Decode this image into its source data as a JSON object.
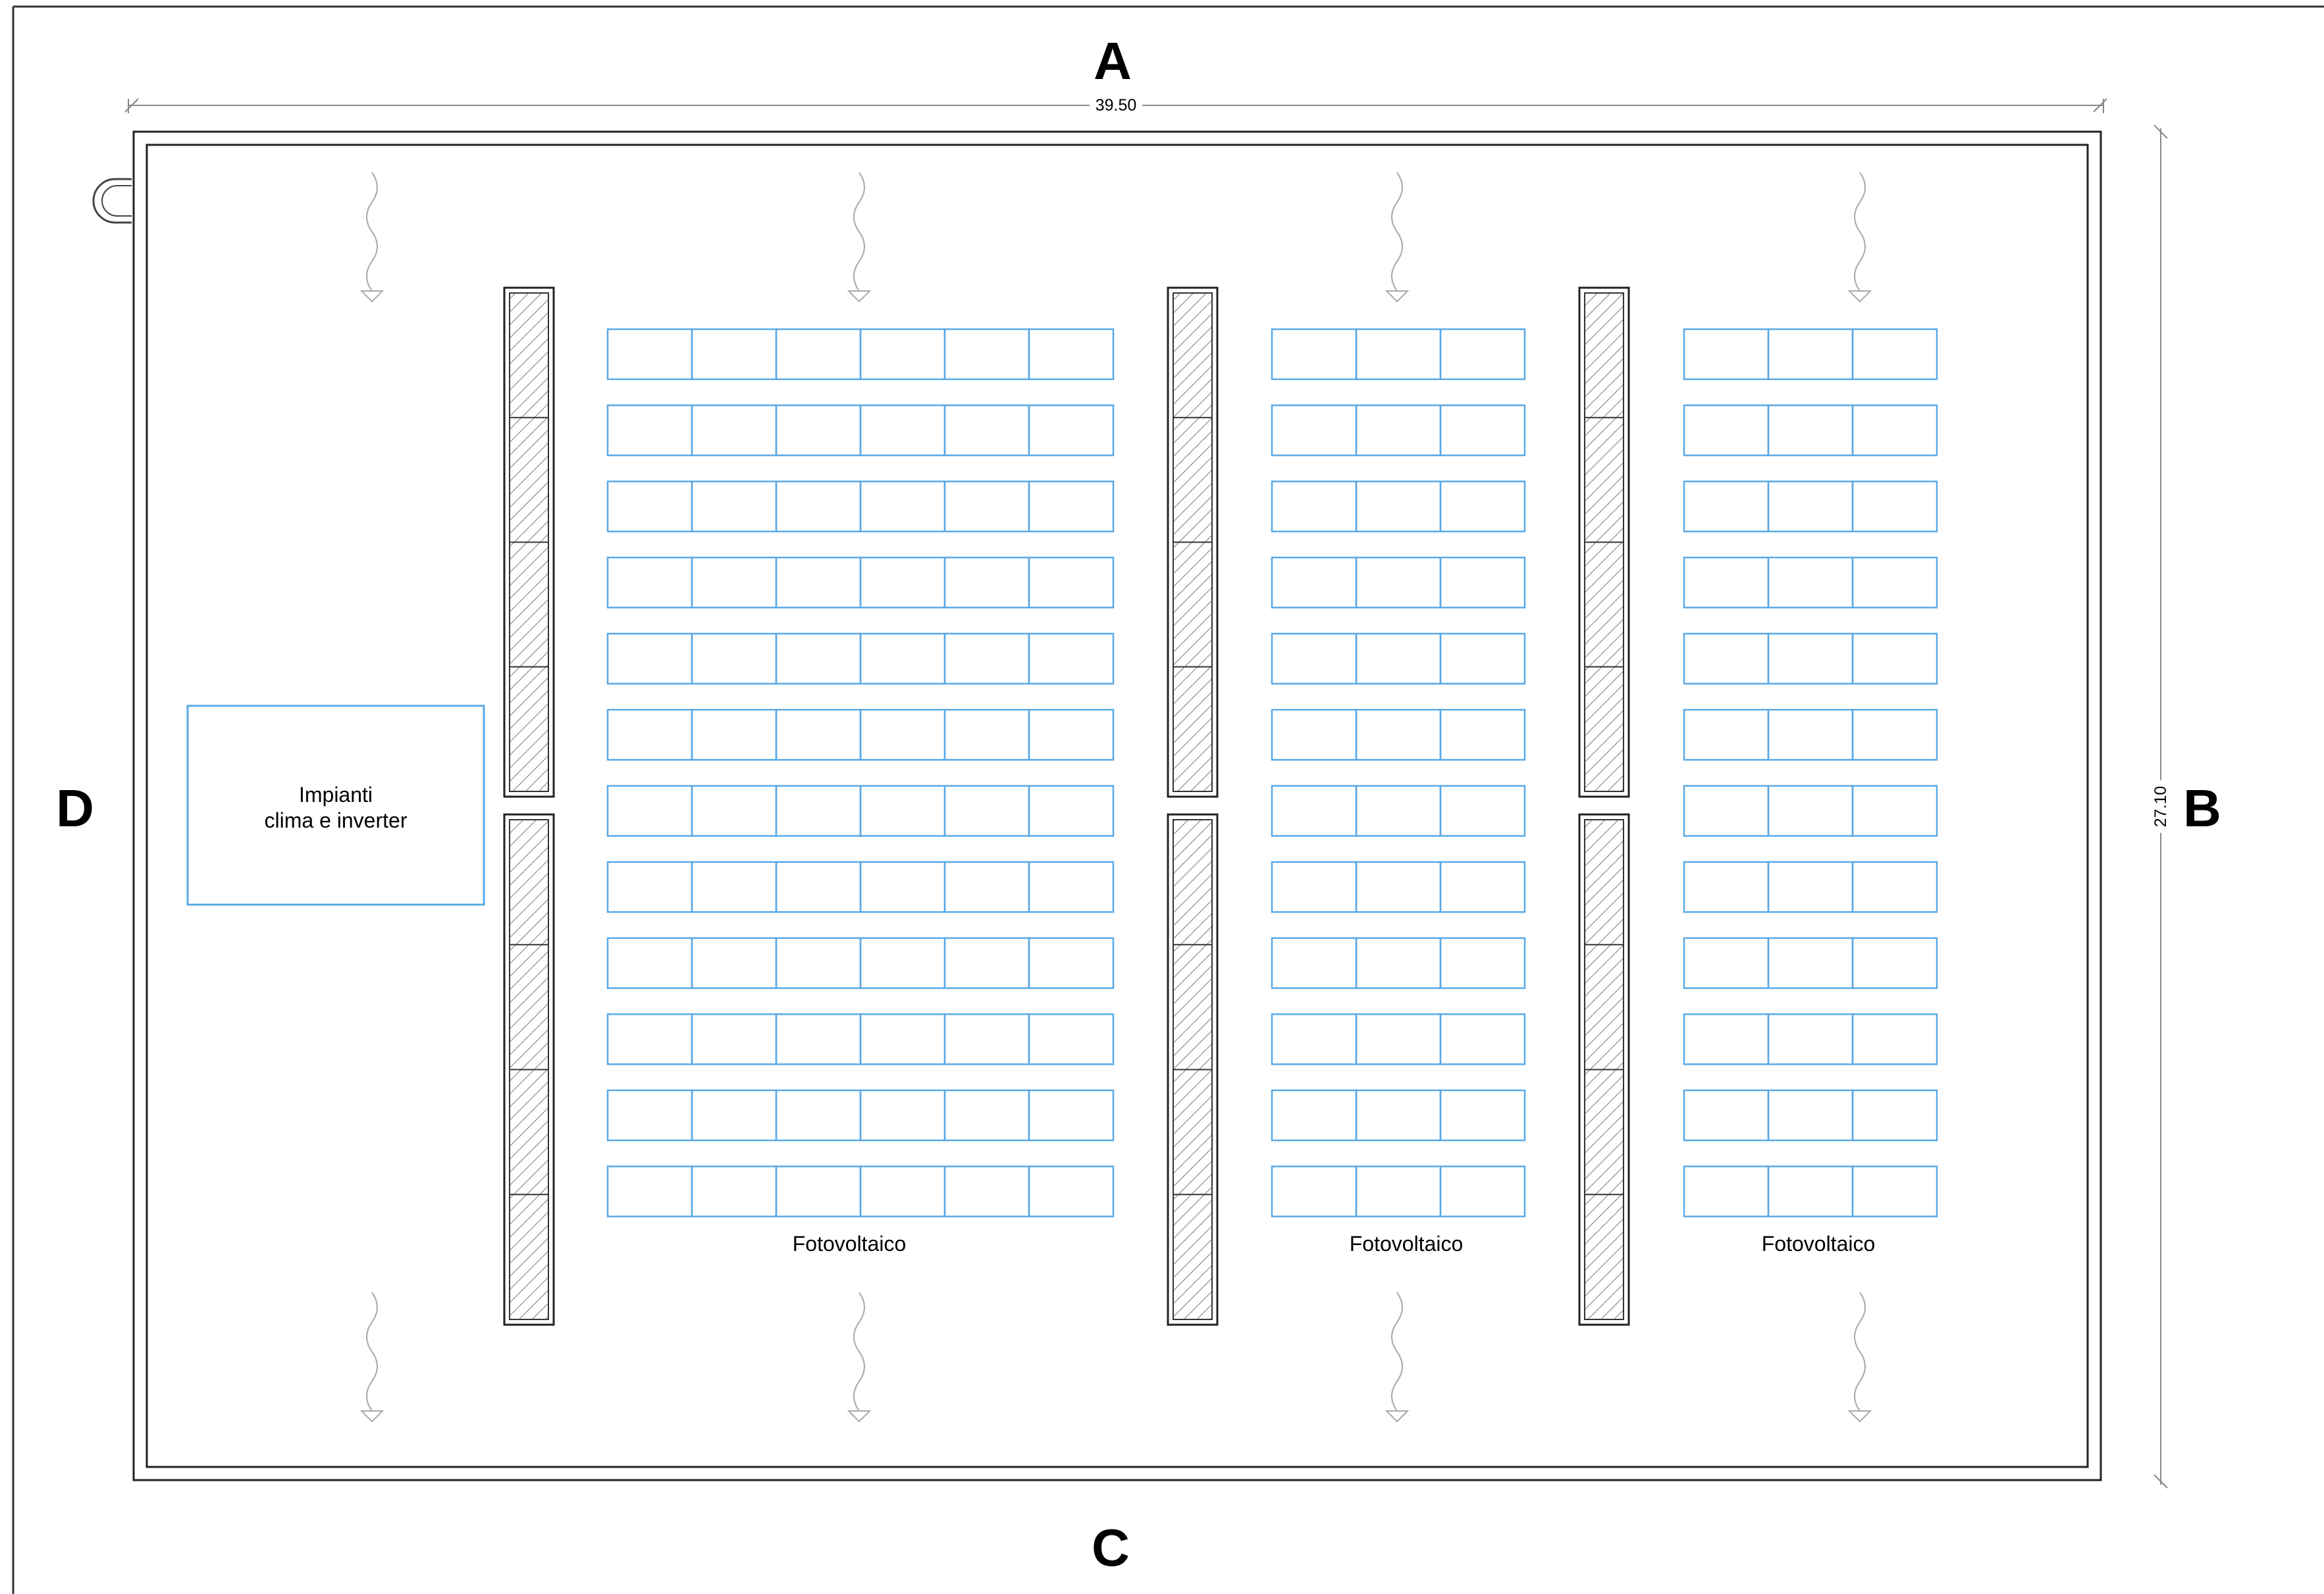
{
  "sides": {
    "top": "A",
    "right": "B",
    "bottom": "C",
    "left": "D"
  },
  "dimensions": {
    "width": "39.50",
    "depth": "27.10"
  },
  "equipment_area": {
    "line1": "Impianti",
    "line2": "clima e inverter"
  },
  "pv_fields": [
    {
      "label": "Fotovoltaico",
      "rows": 12,
      "cols": 6
    },
    {
      "label": "Fotovoltaico",
      "rows": 12,
      "cols": 3
    },
    {
      "label": "Fotovoltaico",
      "rows": 12,
      "cols": 3
    }
  ],
  "colors": {
    "panel": "#5aa9e6",
    "lines": "#222222",
    "hatch": "#666666",
    "dim": "#888888"
  }
}
